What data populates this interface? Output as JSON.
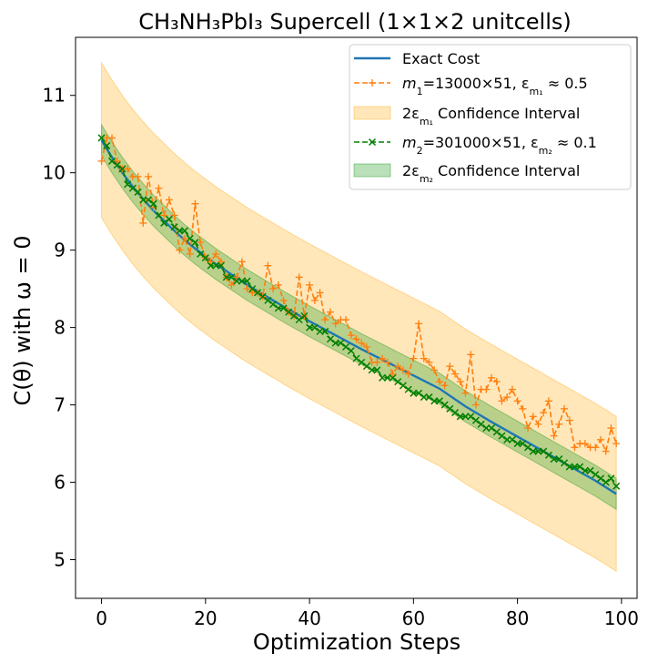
{
  "chart_data": {
    "type": "line",
    "title": "CH₃NH₃PbI₃ Supercell (1×1×2 unitcells)",
    "xlabel": "Optimization Steps",
    "ylabel": "C(θ) with ω = 0",
    "xlim": [
      -5,
      103
    ],
    "ylim": [
      4.5,
      11.75
    ],
    "xticks": [
      0,
      20,
      40,
      60,
      80,
      100
    ],
    "yticks": [
      5,
      6,
      7,
      8,
      9,
      10,
      11
    ],
    "legend_position": "top-right",
    "exact": {
      "name": "Exact Cost",
      "color": "#1f77b4",
      "x": [
        0,
        2,
        4,
        6,
        8,
        10,
        12,
        14,
        16,
        18,
        20,
        22,
        24,
        26,
        28,
        30,
        35,
        40,
        45,
        50,
        55,
        60,
        65,
        70,
        75,
        80,
        85,
        90,
        95,
        99
      ],
      "y": [
        10.42,
        10.2,
        10.0,
        9.82,
        9.66,
        9.51,
        9.38,
        9.25,
        9.13,
        9.02,
        8.92,
        8.82,
        8.73,
        8.64,
        8.55,
        8.47,
        8.27,
        8.08,
        7.9,
        7.72,
        7.55,
        7.38,
        7.21,
        6.98,
        6.78,
        6.59,
        6.4,
        6.21,
        6.02,
        5.85
      ]
    },
    "series": [
      {
        "name": "m₁=13000×51,  ε_m₁ ≈ 0.5",
        "label_main": "m",
        "label_sub1": "1",
        "label_mid": "=13000×51,  ε",
        "label_sub2": "m₁",
        "label_end": " ≈ 0.5",
        "color": "#ff7f0e",
        "marker": "+",
        "y": [
          10.15,
          10.45,
          10.45,
          10.15,
          10.05,
          10.05,
          9.95,
          9.95,
          9.35,
          9.95,
          9.55,
          9.8,
          9.45,
          9.65,
          9.45,
          9.0,
          9.15,
          8.95,
          9.6,
          9.1,
          8.9,
          8.85,
          8.95,
          8.85,
          8.65,
          8.55,
          8.65,
          8.85,
          8.5,
          8.45,
          8.45,
          8.4,
          8.8,
          8.5,
          8.55,
          8.35,
          8.2,
          8.15,
          8.65,
          8.15,
          8.55,
          8.35,
          8.45,
          8.1,
          8.2,
          8.05,
          8.1,
          8.1,
          7.9,
          7.85,
          7.8,
          7.75,
          7.55,
          7.55,
          7.6,
          7.55,
          7.4,
          7.5,
          7.45,
          7.4,
          7.6,
          8.05,
          7.6,
          7.55,
          7.45,
          7.3,
          7.25,
          7.5,
          7.4,
          7.3,
          7.15,
          7.65,
          7.0,
          7.2,
          7.2,
          7.35,
          7.3,
          7.05,
          7.1,
          7.2,
          7.05,
          6.95,
          6.7,
          6.85,
          6.75,
          6.9,
          7.05,
          6.6,
          6.75,
          6.95,
          6.8,
          6.45,
          6.5,
          6.5,
          6.45,
          6.45,
          6.55,
          6.4,
          6.7,
          6.5
        ]
      },
      {
        "name": "m₂=301000×51,  ε_m₂ ≈ 0.1",
        "label_main": "m",
        "label_sub1": "2",
        "label_mid": "=301000×51,  ε",
        "label_sub2": "m₂",
        "label_end": " ≈ 0.1",
        "color": "#008000",
        "marker": "x",
        "y": [
          10.45,
          10.35,
          10.15,
          10.1,
          10.05,
          9.85,
          9.8,
          9.75,
          9.65,
          9.65,
          9.6,
          9.45,
          9.35,
          9.4,
          9.3,
          9.25,
          9.25,
          9.15,
          9.1,
          8.95,
          8.9,
          8.8,
          8.8,
          8.8,
          8.65,
          8.65,
          8.6,
          8.6,
          8.6,
          8.5,
          8.45,
          8.4,
          8.35,
          8.3,
          8.25,
          8.25,
          8.2,
          8.15,
          8.1,
          8.15,
          8.0,
          8.0,
          7.95,
          7.95,
          7.85,
          7.8,
          7.8,
          7.75,
          7.7,
          7.6,
          7.55,
          7.5,
          7.45,
          7.45,
          7.35,
          7.35,
          7.35,
          7.3,
          7.25,
          7.2,
          7.15,
          7.15,
          7.1,
          7.1,
          7.05,
          7.05,
          7.0,
          6.95,
          6.9,
          6.85,
          6.85,
          6.85,
          6.8,
          6.75,
          6.7,
          6.7,
          6.65,
          6.6,
          6.55,
          6.55,
          6.5,
          6.5,
          6.45,
          6.4,
          6.4,
          6.4,
          6.35,
          6.3,
          6.3,
          6.25,
          6.2,
          6.2,
          6.2,
          6.15,
          6.15,
          6.1,
          6.05,
          6.0,
          6.05,
          5.95
        ]
      }
    ],
    "bands": [
      {
        "name": "2ε_m₁ Confidence Interval",
        "label_pre": "2ε",
        "label_sub": "m₁",
        "label_post": " Confidence Interval",
        "color": "#ffa500",
        "opacity": 0.27,
        "half_width": 1.0
      },
      {
        "name": "2ε_m₂ Confidence Interval",
        "label_pre": "2ε",
        "label_sub": "m₂",
        "label_post": " Confidence Interval",
        "color": "#2ca02c",
        "opacity": 0.33,
        "half_width": 0.2
      }
    ]
  }
}
